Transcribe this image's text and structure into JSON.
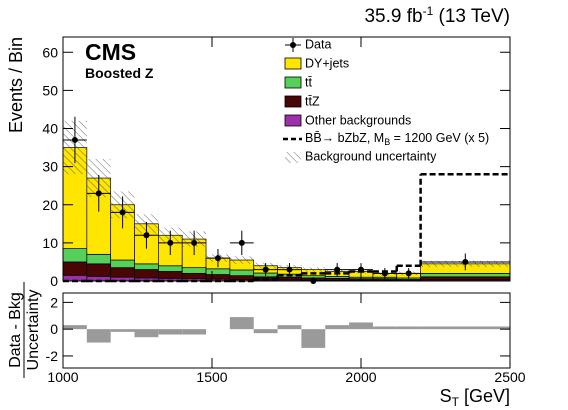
{
  "chart_data": [
    {
      "type": "histogram",
      "title_parts": [
        "35.9 fb",
        "-1",
        " (13 TeV)"
      ],
      "experiment": "CMS",
      "selection": "Boosted Z",
      "ylabel": "Events / Bin",
      "bins": [
        1000,
        1080,
        1160,
        1240,
        1320,
        1400,
        1480,
        1560,
        1640,
        1720,
        1800,
        1880,
        1960,
        2040,
        2120,
        2200,
        2500
      ],
      "xlim": [
        1000,
        2500
      ],
      "xticks": [
        1000,
        1500,
        2000,
        2500
      ],
      "ylim": [
        0,
        64
      ],
      "yticks": [
        0,
        10,
        20,
        30,
        40,
        50,
        60
      ],
      "legend": "upper right",
      "series": [
        {
          "name": "Other backgrounds",
          "color": "#9b30a8",
          "values": [
            1.5,
            1.2,
            1,
            0.8,
            0.7,
            0.6,
            0.5,
            0.4,
            0.3,
            0.3,
            0.2,
            0.2,
            0.2,
            0.2,
            0.1,
            0.3
          ]
        },
        {
          "name": "tt̄Z",
          "color": "#4a0505",
          "values": [
            3.5,
            3.3,
            2.5,
            2.2,
            1.8,
            1.4,
            1.2,
            1,
            0.8,
            0.7,
            0.6,
            0.5,
            0.4,
            0.4,
            0.3,
            0.8
          ]
        },
        {
          "name": "tt̄",
          "color": "#55d05a",
          "values": [
            3.5,
            2.5,
            2,
            1.5,
            1.5,
            1.5,
            1.5,
            1.5,
            1,
            0.8,
            0.6,
            0.5,
            0.4,
            0.4,
            0.4,
            0.9
          ]
        },
        {
          "name": "DY+jets",
          "color": "#ffe600",
          "values": [
            26.5,
            20,
            14.5,
            10.5,
            8,
            7.5,
            2.8,
            2.6,
            1.9,
            1.7,
            1.6,
            1.3,
            1.5,
            1,
            1.2,
            2.5
          ]
        }
      ],
      "data": {
        "name": "Data",
        "values": [
          37,
          23,
          18,
          12,
          10,
          10,
          6,
          10,
          3,
          3,
          0,
          3,
          3,
          2,
          2,
          5
        ],
        "errors": [
          6.1,
          4.8,
          4.2,
          3.5,
          3.2,
          3.2,
          2.4,
          3.2,
          1.7,
          1.7,
          1,
          1.7,
          1.7,
          1.4,
          1.4,
          2.2
        ]
      },
      "signal": {
        "name_parts": [
          "BB̄→ bZbZ, M",
          "B",
          " = 1200 GeV (x 5)"
        ],
        "values": [
          0,
          0,
          0,
          0,
          0,
          0,
          0,
          0,
          0.5,
          1.5,
          2,
          2,
          2.5,
          2.5,
          4,
          28
        ]
      },
      "uncertainty": {
        "name": "Background uncertainty",
        "values": [
          7,
          5,
          3.5,
          2.5,
          2,
          2,
          1,
          1,
          0.8,
          0.7,
          0.6,
          0.5,
          0.5,
          0.5,
          0.5,
          0.8
        ]
      }
    },
    {
      "type": "histogram",
      "ylabel_parts": [
        "Data - Bkg",
        "Uncertainty"
      ],
      "xlabel_parts": [
        "S",
        "T",
        " [GeV]"
      ],
      "bins": [
        1000,
        1080,
        1160,
        1240,
        1320,
        1400,
        1480,
        1560,
        1640,
        1720,
        1800,
        1880,
        1960,
        2040,
        2120,
        2200,
        2500
      ],
      "xlim": [
        1000,
        2500
      ],
      "xticks": [
        1000,
        1500,
        2000,
        2500
      ],
      "ylim": [
        -2.9,
        2.7
      ],
      "yticks": [
        -2,
        0,
        2
      ],
      "color": "#9a9a9a",
      "values": [
        0.3,
        -1,
        -0.2,
        -0.6,
        -0.4,
        -0.4,
        0,
        0.9,
        -0.3,
        0.3,
        -1.4,
        0.3,
        0.5,
        0.2,
        0.2,
        0.2
      ]
    }
  ]
}
